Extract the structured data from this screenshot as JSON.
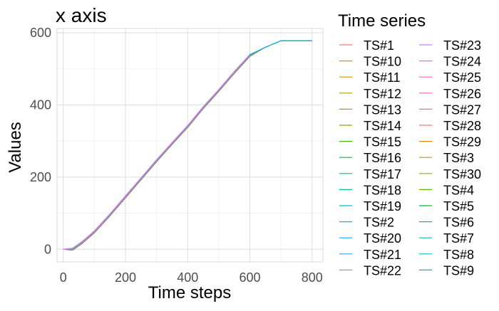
{
  "chart_data": {
    "type": "line",
    "title": "x axis",
    "xlabel": "Time steps",
    "ylabel": "Values",
    "xlim": [
      -20,
      835
    ],
    "ylim": [
      -35,
      612
    ],
    "x_ticks": [
      0,
      200,
      400,
      600,
      800
    ],
    "y_ticks": [
      0,
      200,
      400,
      600
    ],
    "grid": true,
    "legend": {
      "title": "Time series",
      "placement": "right",
      "columns": 2,
      "entries": [
        {
          "name": "TS#1",
          "color": "#F8766D"
        },
        {
          "name": "TS#10",
          "color": "#EA8331"
        },
        {
          "name": "TS#11",
          "color": "#D89000"
        },
        {
          "name": "TS#12",
          "color": "#C09B00"
        },
        {
          "name": "TS#13",
          "color": "#A3A500"
        },
        {
          "name": "TS#14",
          "color": "#7CAE00"
        },
        {
          "name": "TS#15",
          "color": "#39B600"
        },
        {
          "name": "TS#16",
          "color": "#00BB4E"
        },
        {
          "name": "TS#17",
          "color": "#00BF7D"
        },
        {
          "name": "TS#18",
          "color": "#00C1A3"
        },
        {
          "name": "TS#19",
          "color": "#00BFC4"
        },
        {
          "name": "TS#2",
          "color": "#00BAE0"
        },
        {
          "name": "TS#20",
          "color": "#00B0F6"
        },
        {
          "name": "TS#21",
          "color": "#35A2FF"
        },
        {
          "name": "TS#22",
          "color": "#9590FF"
        },
        {
          "name": "TS#23",
          "color": "#C77CFF"
        },
        {
          "name": "TS#24",
          "color": "#E76BF3"
        },
        {
          "name": "TS#25",
          "color": "#FA62DB"
        },
        {
          "name": "TS#26",
          "color": "#FF62BC"
        },
        {
          "name": "TS#27",
          "color": "#FF6A98"
        },
        {
          "name": "TS#28",
          "color": "#F8766D"
        },
        {
          "name": "TS#29",
          "color": "#E58700"
        },
        {
          "name": "TS#3",
          "color": "#C99800"
        },
        {
          "name": "TS#30",
          "color": "#A3A500"
        },
        {
          "name": "TS#4",
          "color": "#6BB100"
        },
        {
          "name": "TS#5",
          "color": "#00BA38"
        },
        {
          "name": "TS#6",
          "color": "#00BF7D"
        },
        {
          "name": "TS#7",
          "color": "#00C0AF"
        },
        {
          "name": "TS#8",
          "color": "#00BCD8"
        },
        {
          "name": "TS#9",
          "color": "#00B0F6"
        }
      ]
    },
    "series_shape": {
      "x": [
        0,
        30,
        60,
        100,
        150,
        200,
        250,
        300,
        350,
        400,
        450,
        500,
        550,
        600,
        650,
        700,
        800
      ],
      "y": [
        0,
        0,
        18,
        48,
        95,
        145,
        195,
        245,
        293,
        340,
        392,
        440,
        490,
        537,
        560,
        578,
        578
      ]
    }
  }
}
